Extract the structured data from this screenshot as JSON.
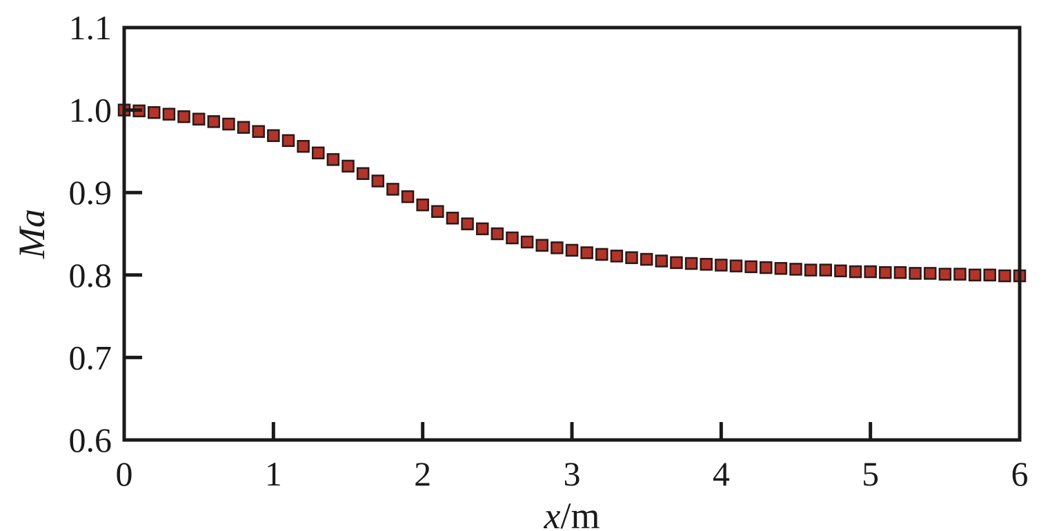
{
  "chart_data": {
    "type": "scatter",
    "xlabel_var": "x",
    "xlabel_unit": "/m",
    "ylabel": "Ma",
    "xlim": [
      0,
      6
    ],
    "ylim": [
      0.6,
      1.1
    ],
    "x_ticks": [
      "0",
      "1",
      "2",
      "3",
      "4",
      "5",
      "6"
    ],
    "y_ticks": [
      "0.6",
      "0.7",
      "0.8",
      "0.9",
      "1.0",
      "1.1"
    ],
    "grid": false,
    "marker": "square",
    "marker_color": "#b3342a",
    "marker_edge_color": "#2a1a18",
    "series": [
      {
        "x": [
          0.0,
          0.1,
          0.2,
          0.3,
          0.4,
          0.5,
          0.6,
          0.7,
          0.8,
          0.9,
          1.0,
          1.1,
          1.2,
          1.3,
          1.4,
          1.5,
          1.6,
          1.7,
          1.8,
          1.9,
          2.0,
          2.1,
          2.2,
          2.3,
          2.4,
          2.5,
          2.6,
          2.7,
          2.8,
          2.9,
          3.0,
          3.1,
          3.2,
          3.3,
          3.4,
          3.5,
          3.6,
          3.7,
          3.8,
          3.9,
          4.0,
          4.1,
          4.2,
          4.3,
          4.4,
          4.5,
          4.6,
          4.7,
          4.8,
          4.9,
          5.0,
          5.1,
          5.2,
          5.3,
          5.4,
          5.5,
          5.6,
          5.7,
          5.8,
          5.9,
          6.0
        ],
        "y": [
          1.0,
          0.999,
          0.997,
          0.995,
          0.992,
          0.989,
          0.986,
          0.983,
          0.979,
          0.974,
          0.969,
          0.963,
          0.956,
          0.948,
          0.94,
          0.932,
          0.923,
          0.914,
          0.904,
          0.895,
          0.885,
          0.877,
          0.869,
          0.862,
          0.856,
          0.85,
          0.845,
          0.84,
          0.836,
          0.833,
          0.83,
          0.827,
          0.825,
          0.823,
          0.821,
          0.819,
          0.817,
          0.815,
          0.814,
          0.813,
          0.812,
          0.811,
          0.81,
          0.809,
          0.808,
          0.807,
          0.806,
          0.806,
          0.805,
          0.804,
          0.804,
          0.803,
          0.803,
          0.802,
          0.802,
          0.801,
          0.801,
          0.8,
          0.8,
          0.799,
          0.799
        ]
      }
    ]
  }
}
